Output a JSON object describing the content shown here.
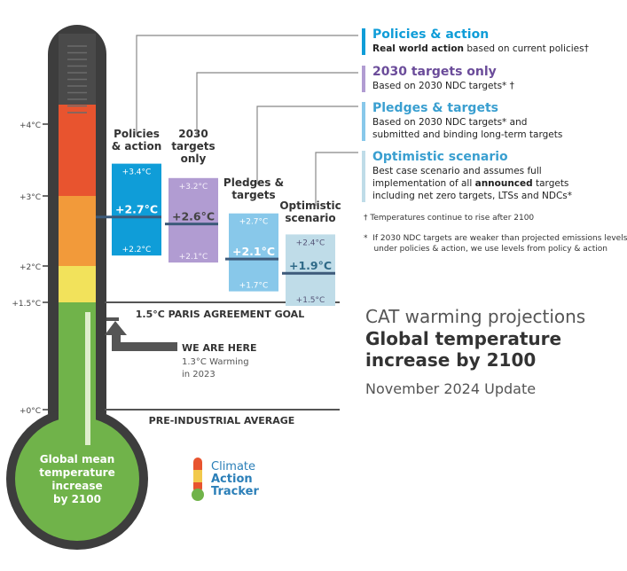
{
  "colors": {
    "policies": "#0f9dd8",
    "ndc": "#b19cd2",
    "pledges": "#88c8ea",
    "optimistic": "#bfdce8",
    "green": "#70b34a",
    "yellow": "#f2e25b",
    "orange": "#f29a3a",
    "red": "#e8542f",
    "dark": "#3d3d3d"
  },
  "chart_data": {
    "type": "bar",
    "ylim": [
      0,
      4.3
    ],
    "thermometer_ticks": [
      "+0°C",
      "+1.5°C",
      "+2°C",
      "+3°C",
      "+4°C"
    ],
    "tick_values": [
      0,
      1.5,
      2,
      3,
      4
    ],
    "categories": [
      "Policies\n& action",
      "2030\ntargets\nonly",
      "Pledges &\ntargets",
      "Optimistic\nscenario"
    ],
    "series": [
      {
        "low": 2.2,
        "high": 3.4,
        "mid": 2.7,
        "low_label": "+2.2°C",
        "high_label": "+3.4°C",
        "mid_label": "+2.7°C"
      },
      {
        "low": 2.1,
        "high": 3.2,
        "mid": 2.6,
        "low_label": "+2.1°C",
        "high_label": "+3.2°C",
        "mid_label": "+2.6°C"
      },
      {
        "low": 1.7,
        "high": 2.7,
        "mid": 2.1,
        "low_label": "+1.7°C",
        "high_label": "+2.7°C",
        "mid_label": "+2.1°C"
      },
      {
        "low": 1.5,
        "high": 2.4,
        "mid": 1.9,
        "low_label": "+1.5°C",
        "high_label": "+2.4°C",
        "mid_label": "+1.9°C"
      }
    ],
    "goal_line": {
      "value": 1.5,
      "label": "1.5°C PARIS AGREEMENT GOAL"
    },
    "baseline": {
      "value": 0,
      "label": "PRE-INDUSTRIAL AVERAGE"
    },
    "current": {
      "value": 1.3,
      "title": "WE ARE HERE",
      "line1": "1.3°C Warming",
      "line2": "in 2023"
    },
    "bulb_label": "Global mean\ntemperature\nincrease\nby 2100"
  },
  "legend": [
    {
      "title": "Policies & action",
      "desc_bold": "Real world action",
      "desc": " based on current policies†"
    },
    {
      "title": "2030 targets only",
      "desc": "Based on 2030 NDC targets* †"
    },
    {
      "title": "Pledges & targets",
      "desc": "Based on 2030 NDC targets* and\nsubmitted and binding long-term targets"
    },
    {
      "title": "Optimistic scenario",
      "desc_pre": "Best case scenario and assumes full\nimplementation of all ",
      "desc_bold": "announced",
      "desc_post": " targets\nincluding net zero targets, LTSs and NDCs*"
    }
  ],
  "notes": {
    "dagger": "†  Temperatures continue to rise after 2100",
    "star": "*  If 2030 NDC targets are weaker than projected emissions levels\n    under policies & action, we use levels from policy & action"
  },
  "cat": {
    "title": "CAT warming projections",
    "bold1": "Global temperature",
    "bold2": "increase by 2100",
    "update": "November 2024 Update"
  },
  "logo": {
    "l1": "Climate",
    "l2": "Action",
    "l3": "Tracker"
  }
}
